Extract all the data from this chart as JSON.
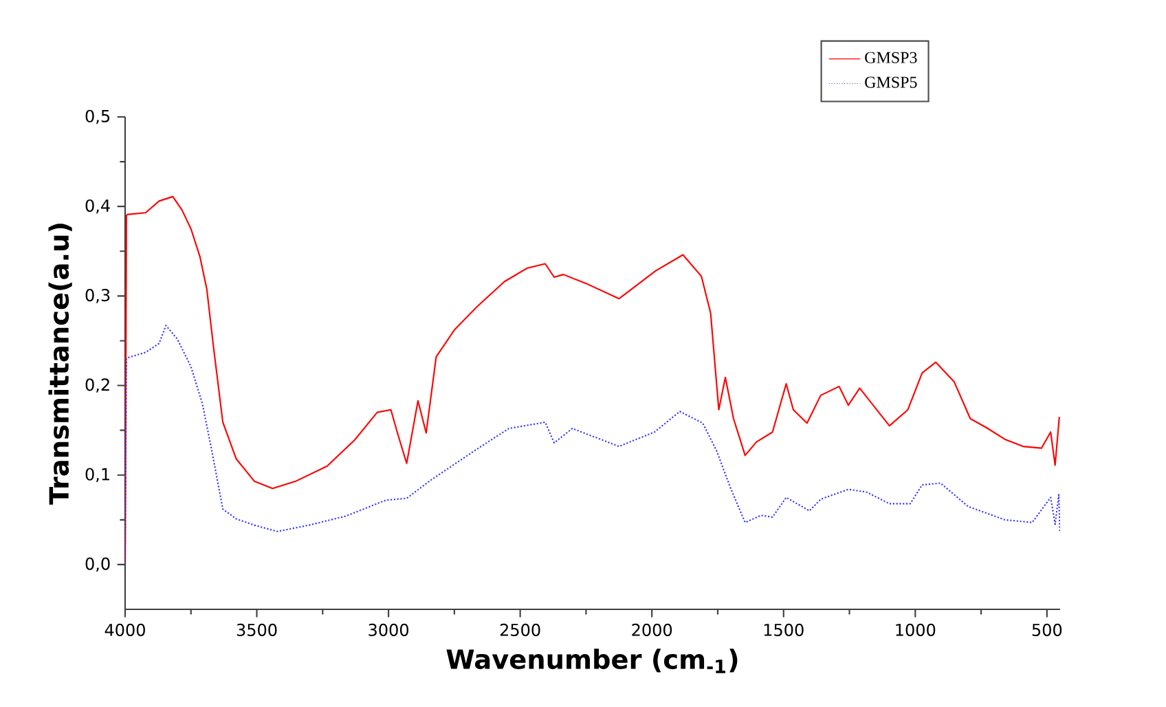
{
  "chart_data": {
    "type": "line",
    "xlabel": "Wavenumber (cm$_{-1}$)",
    "ylabel": "Transmittance(a.u)",
    "xlim": [
      4000,
      450
    ],
    "ylim": [
      -0.05,
      0.5
    ],
    "xticks": [
      4000,
      3500,
      3000,
      2500,
      2000,
      1500,
      1000,
      500
    ],
    "yticks": [
      {
        "value": 0.0,
        "label": "0,0"
      },
      {
        "value": 0.1,
        "label": "0,1"
      },
      {
        "value": 0.2,
        "label": "0,2"
      },
      {
        "value": 0.3,
        "label": "0,3"
      },
      {
        "value": 0.4,
        "label": "0,4"
      },
      {
        "value": 0.5,
        "label": "0,5"
      }
    ],
    "legend": "top right",
    "series": [
      {
        "name": "GMSP3",
        "color": "#ff0000",
        "line_style": "solid",
        "x": [
          4000,
          3995,
          3991,
          3922,
          3871,
          3819,
          3784,
          3750,
          3716,
          3690,
          3664,
          3629,
          3578,
          3509,
          3440,
          3353,
          3233,
          3129,
          3043,
          2991,
          2966,
          2931,
          2888,
          2857,
          2819,
          2750,
          2664,
          2560,
          2474,
          2405,
          2371,
          2336,
          2250,
          2125,
          1986,
          1882,
          1812,
          1777,
          1746,
          1721,
          1690,
          1646,
          1603,
          1542,
          1490,
          1463,
          1411,
          1359,
          1289,
          1254,
          1211,
          1141,
          1098,
          1028,
          974,
          922,
          852,
          791,
          730,
          660,
          591,
          521,
          486,
          469,
          453
        ],
        "values": [
          0.0,
          0.39,
          0.391,
          0.393,
          0.406,
          0.411,
          0.396,
          0.375,
          0.344,
          0.308,
          0.242,
          0.159,
          0.118,
          0.093,
          0.085,
          0.093,
          0.11,
          0.139,
          0.17,
          0.173,
          0.147,
          0.113,
          0.183,
          0.147,
          0.232,
          0.262,
          0.288,
          0.316,
          0.331,
          0.336,
          0.321,
          0.324,
          0.314,
          0.297,
          0.328,
          0.346,
          0.322,
          0.281,
          0.173,
          0.209,
          0.163,
          0.122,
          0.137,
          0.148,
          0.202,
          0.173,
          0.158,
          0.189,
          0.199,
          0.178,
          0.197,
          0.171,
          0.155,
          0.173,
          0.214,
          0.226,
          0.204,
          0.163,
          0.153,
          0.14,
          0.132,
          0.13,
          0.148,
          0.111,
          0.165
        ]
      },
      {
        "name": "GMSP5",
        "color": "#3333ff",
        "line_style": "dotted",
        "x": [
          4000,
          3995,
          3991,
          3922,
          3871,
          3845,
          3802,
          3750,
          3707,
          3672,
          3629,
          3578,
          3509,
          3422,
          3302,
          3164,
          3009,
          2931,
          2836,
          2664,
          2543,
          2405,
          2371,
          2302,
          2125,
          1990,
          1894,
          1807,
          1754,
          1702,
          1646,
          1585,
          1542,
          1490,
          1402,
          1359,
          1254,
          1185,
          1098,
          1019,
          974,
          904,
          800,
          660,
          556,
          486,
          469,
          455,
          451
        ],
        "values": [
          0.0,
          0.23,
          0.231,
          0.237,
          0.247,
          0.267,
          0.252,
          0.221,
          0.18,
          0.129,
          0.062,
          0.051,
          0.044,
          0.037,
          0.044,
          0.054,
          0.072,
          0.074,
          0.095,
          0.129,
          0.152,
          0.159,
          0.136,
          0.152,
          0.132,
          0.148,
          0.171,
          0.158,
          0.127,
          0.086,
          0.047,
          0.055,
          0.053,
          0.075,
          0.06,
          0.073,
          0.084,
          0.081,
          0.068,
          0.068,
          0.089,
          0.091,
          0.065,
          0.05,
          0.047,
          0.075,
          0.045,
          0.078,
          0.037
        ]
      }
    ]
  }
}
